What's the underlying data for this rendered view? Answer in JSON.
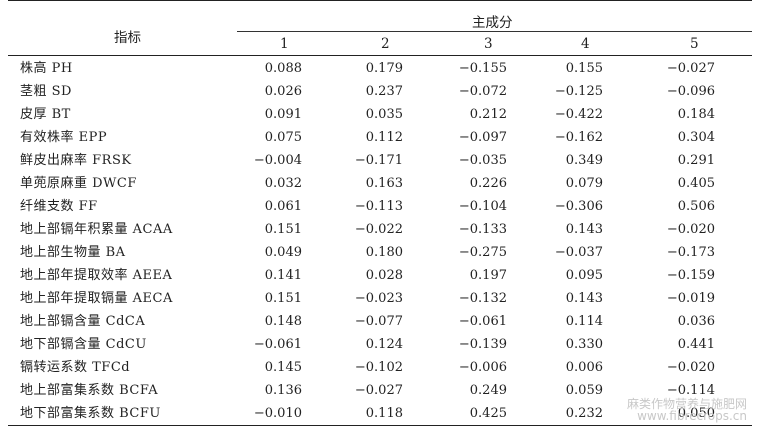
{
  "header": {
    "indicator": "指标",
    "main_component": "主成分",
    "components": [
      "1",
      "2",
      "3",
      "4",
      "5"
    ]
  },
  "rows": [
    {
      "label": "株高 PH",
      "values": [
        "0.088",
        "0.179",
        "−0.155",
        "0.155",
        "−0.027"
      ]
    },
    {
      "label": "茎粗 SD",
      "values": [
        "0.026",
        "0.237",
        "−0.072",
        "−0.125",
        "−0.096"
      ]
    },
    {
      "label": "皮厚 BT",
      "values": [
        "0.091",
        "0.035",
        "0.212",
        "−0.422",
        "0.184"
      ]
    },
    {
      "label": "有效株率 EPP",
      "values": [
        "0.075",
        "0.112",
        "−0.097",
        "−0.162",
        "0.304"
      ]
    },
    {
      "label": "鲜皮出麻率 FRSK",
      "values": [
        "−0.004",
        "−0.171",
        "−0.035",
        "0.349",
        "0.291"
      ]
    },
    {
      "label": "单蔸原麻重 DWCF",
      "values": [
        "0.032",
        "0.163",
        "0.226",
        "0.079",
        "0.405"
      ]
    },
    {
      "label": "纤维支数 FF",
      "values": [
        "0.061",
        "−0.113",
        "−0.104",
        "−0.306",
        "0.506"
      ]
    },
    {
      "label": "地上部镉年积累量 ACAA",
      "values": [
        "0.151",
        "−0.022",
        "−0.133",
        "0.143",
        "−0.020"
      ]
    },
    {
      "label": "地上部生物量 BA",
      "values": [
        "0.049",
        "0.180",
        "−0.275",
        "−0.037",
        "−0.173"
      ]
    },
    {
      "label": "地上部年提取效率 AEEA",
      "values": [
        "0.141",
        "0.028",
        "0.197",
        "0.095",
        "−0.159"
      ]
    },
    {
      "label": "地上部年提取镉量 AECA",
      "values": [
        "0.151",
        "−0.023",
        "−0.132",
        "0.143",
        "−0.019"
      ]
    },
    {
      "label": "地上部镉含量 CdCA",
      "values": [
        "0.148",
        "−0.077",
        "−0.061",
        "0.114",
        "0.036"
      ]
    },
    {
      "label": "地下部镉含量 CdCU",
      "values": [
        "−0.061",
        "0.124",
        "−0.139",
        "0.330",
        "0.441"
      ]
    },
    {
      "label": "镉转运系数 TFCd",
      "values": [
        "0.145",
        "−0.102",
        "−0.006",
        "0.006",
        "−0.020"
      ]
    },
    {
      "label": "地上部富集系数 BCFA",
      "values": [
        "0.136",
        "−0.027",
        "0.249",
        "0.059",
        "−0.114"
      ]
    },
    {
      "label": "地下部富集系数 BCFU",
      "values": [
        "−0.010",
        "0.118",
        "0.425",
        "0.232",
        "0.050"
      ]
    }
  ],
  "watermark": {
    "line1": "麻类作物营养与施肥网",
    "line2": "www.fibrecrops.cn"
  }
}
